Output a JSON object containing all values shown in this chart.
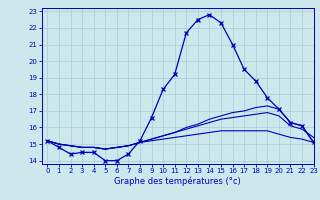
{
  "xlabel": "Graphe des températures (°c)",
  "xlim": [
    -0.5,
    23
  ],
  "ylim": [
    13.8,
    23.2
  ],
  "xticks": [
    0,
    1,
    2,
    3,
    4,
    5,
    6,
    7,
    8,
    9,
    10,
    11,
    12,
    13,
    14,
    15,
    16,
    17,
    18,
    19,
    20,
    21,
    22,
    23
  ],
  "yticks": [
    14,
    15,
    16,
    17,
    18,
    19,
    20,
    21,
    22,
    23
  ],
  "bg_color": "#cce8ec",
  "grid_color": "#aaccd4",
  "line_color": "#0000bb",
  "font_color": "#0000bb",
  "series1_y": [
    15.2,
    14.8,
    14.4,
    14.5,
    14.5,
    14.0,
    14.0,
    14.4,
    15.2,
    16.6,
    18.3,
    19.2,
    21.7,
    22.5,
    22.8,
    22.3,
    21.0,
    19.5,
    18.8,
    17.8,
    17.1,
    16.3,
    16.1,
    15.1
  ],
  "series2_y": [
    15.2,
    15.0,
    14.9,
    14.8,
    14.8,
    14.7,
    14.8,
    14.9,
    15.1,
    15.3,
    15.5,
    15.7,
    16.0,
    16.2,
    16.5,
    16.7,
    16.9,
    17.0,
    17.2,
    17.3,
    17.1,
    16.3,
    16.1,
    15.1
  ],
  "series3_y": [
    15.2,
    15.0,
    14.9,
    14.8,
    14.8,
    14.7,
    14.8,
    14.9,
    15.1,
    15.3,
    15.5,
    15.7,
    15.9,
    16.1,
    16.3,
    16.5,
    16.6,
    16.7,
    16.8,
    16.9,
    16.7,
    16.1,
    15.9,
    15.4
  ],
  "series4_y": [
    15.2,
    15.0,
    14.9,
    14.8,
    14.8,
    14.7,
    14.8,
    14.9,
    15.1,
    15.2,
    15.3,
    15.4,
    15.5,
    15.6,
    15.7,
    15.8,
    15.8,
    15.8,
    15.8,
    15.8,
    15.6,
    15.4,
    15.3,
    15.1
  ]
}
